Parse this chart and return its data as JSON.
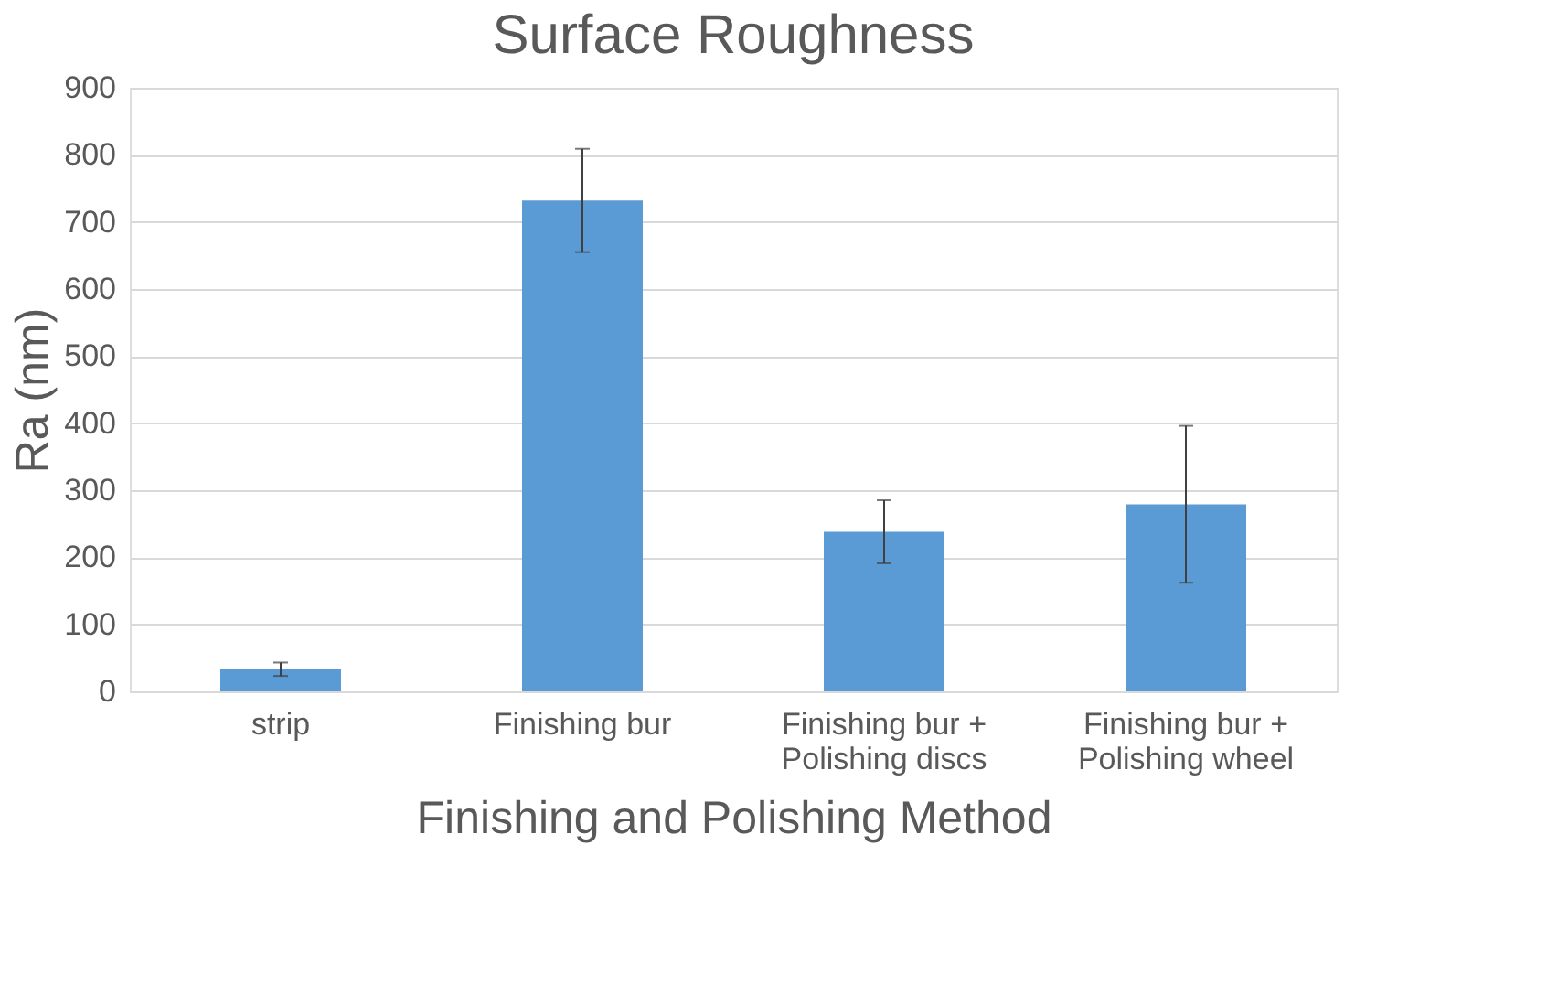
{
  "chart_data": {
    "type": "bar",
    "title": "Surface Roughness",
    "xlabel": "Finishing and Polishing Method",
    "ylabel": "Ra (nm)",
    "categories": [
      "strip",
      "Finishing bur",
      "Finishing bur + Polishing discs",
      "Finishing bur + Polishing wheel"
    ],
    "values": [
      33,
      732,
      238,
      279
    ],
    "errors": [
      10,
      77,
      47,
      117
    ],
    "color": "#5b9bd5",
    "ylim": [
      0,
      900
    ],
    "yticks": [
      0,
      100,
      200,
      300,
      400,
      500,
      600,
      700,
      800,
      900
    ],
    "grid": "y"
  }
}
